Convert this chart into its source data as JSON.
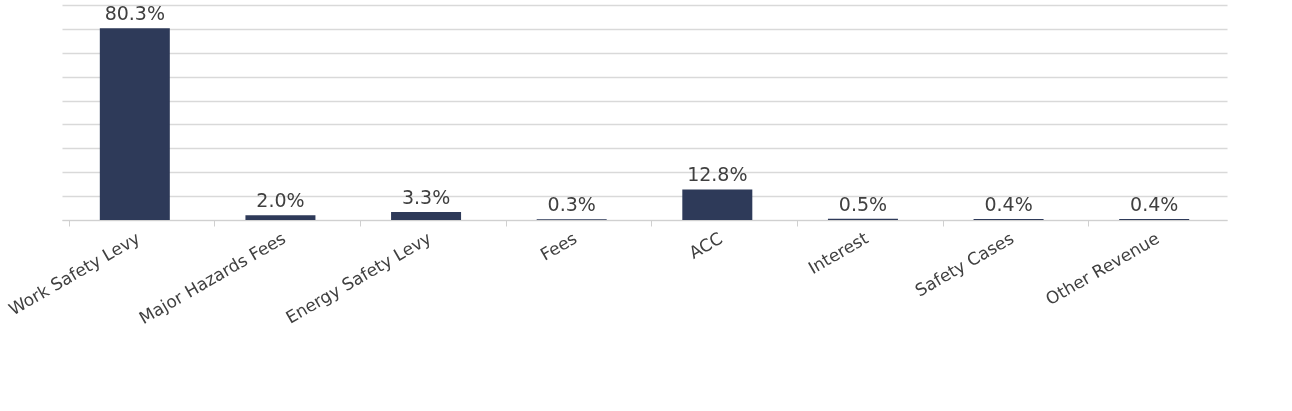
{
  "chart_data": {
    "type": "bar",
    "categories": [
      "Work Safety Levy",
      "Major Hazards Fees",
      "Energy Safety Levy",
      "Fees",
      "ACC",
      "Interest",
      "Safety Cases",
      "Other Revenue"
    ],
    "values": [
      80.3,
      2.0,
      3.3,
      0.3,
      12.8,
      0.5,
      0.4,
      0.4
    ],
    "value_labels": [
      "80.3%",
      "2.0%",
      "3.3%",
      "0.3%",
      "12.8%",
      "0.5%",
      "0.4%",
      "0.4%"
    ],
    "color": "#2e3a59",
    "grid": "y",
    "tick_labels": "x"
  }
}
